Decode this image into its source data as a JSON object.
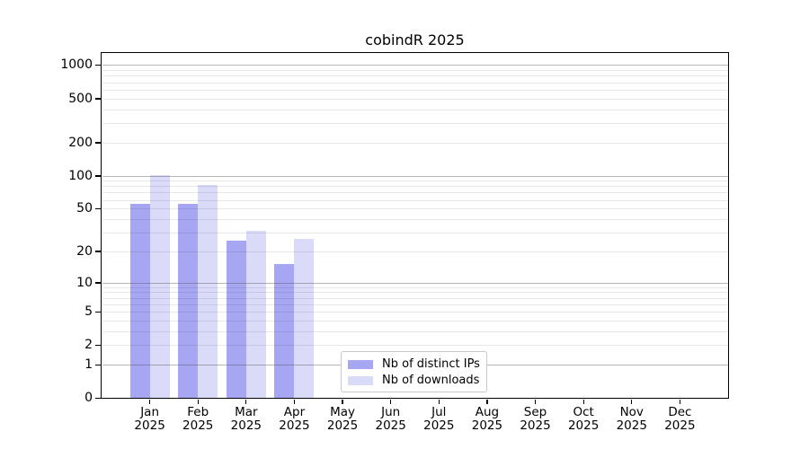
{
  "chart_data": {
    "type": "bar",
    "title": "cobindR 2025",
    "categories": [
      "Jan",
      "Feb",
      "Mar",
      "Apr",
      "May",
      "Jun",
      "Jul",
      "Aug",
      "Sep",
      "Oct",
      "Nov",
      "Dec"
    ],
    "year_label": "2025",
    "series": [
      {
        "name": "Nb of distinct IPs",
        "color": "#a6a6f2",
        "values": [
          55,
          55,
          25,
          15,
          0,
          0,
          0,
          0,
          0,
          0,
          0,
          0
        ]
      },
      {
        "name": "Nb of downloads",
        "color": "#dadaf9",
        "values": [
          101,
          82,
          31,
          26,
          0,
          0,
          0,
          0,
          0,
          0,
          0,
          0
        ]
      }
    ],
    "xlabel": "",
    "ylabel": "",
    "yticks": [
      0,
      1,
      2,
      5,
      10,
      20,
      50,
      100,
      200,
      500,
      1000
    ],
    "yscale": "log10(value+1)",
    "ylim": [
      0,
      1284
    ],
    "grid": "horizontal: major at 1,10,100,1000 (drawn over bars), minor at 2-9 per decade",
    "legend_position": "inside plot, lower middle"
  },
  "style": {
    "background": "#ffffff",
    "text_color": "#000000",
    "spine_color": "#000000",
    "grid_major_color": "rgba(80,80,80,0.42)",
    "grid_minor_color": "rgba(0,0,0,0.09)",
    "legend_border_color": "#c9c9c9",
    "legend_background": "#ffffff"
  }
}
